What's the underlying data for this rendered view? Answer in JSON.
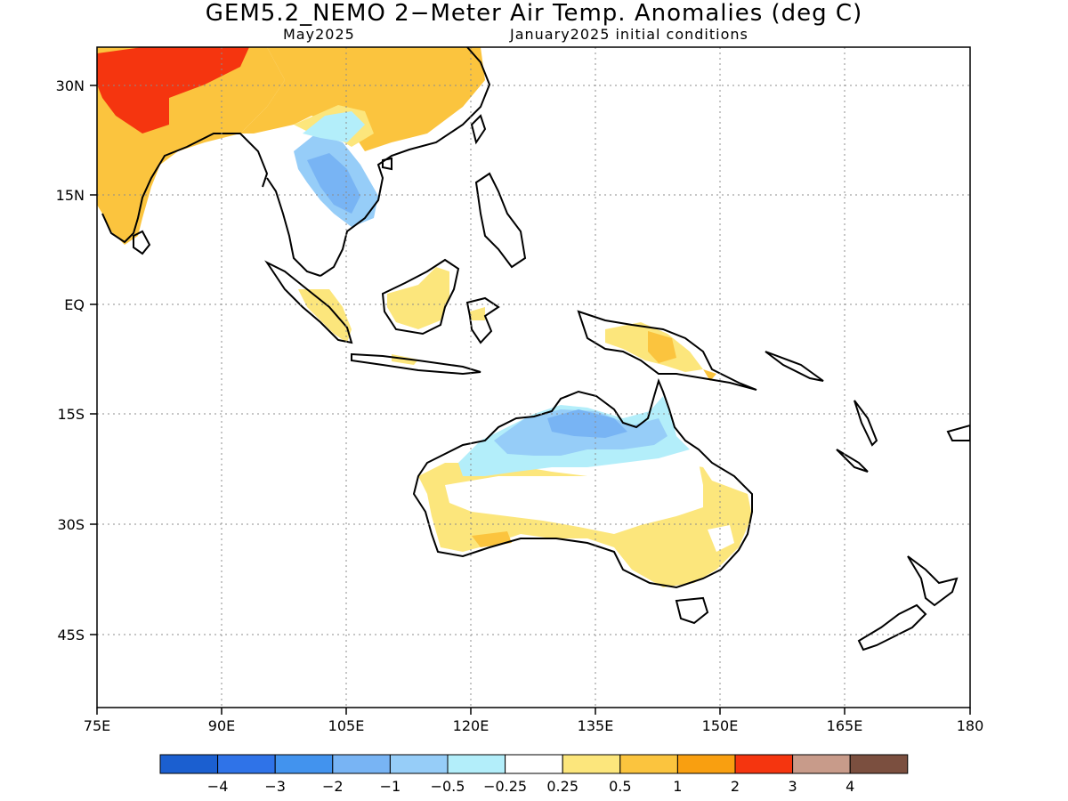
{
  "title": "GEM5.2_NEMO 2−Meter Air Temp. Anomalies (deg C)",
  "subtitle_left": "May2025",
  "subtitle_right": "January2025 initial conditions",
  "map": {
    "lon_range": [
      75,
      180
    ],
    "lat_range": [
      -52,
      35
    ],
    "gridlines": "dotted",
    "x_ticks": [
      "75E",
      "90E",
      "105E",
      "120E",
      "135E",
      "150E",
      "165E",
      "180"
    ],
    "y_ticks": [
      "30N",
      "15N",
      "EQ",
      "15S",
      "30S",
      "45S"
    ],
    "regions": [
      {
        "name": "india",
        "category": "1"
      },
      {
        "name": "north-india-hot-core",
        "category": "2"
      },
      {
        "name": "china",
        "category": "0.5"
      },
      {
        "name": "indochina",
        "category": "-0.5"
      },
      {
        "name": "borneo",
        "category": "0.25"
      },
      {
        "name": "sumatra",
        "category": "0.25"
      },
      {
        "name": "new-guinea",
        "category": "0.25"
      },
      {
        "name": "north-australia",
        "category": "-0.25"
      },
      {
        "name": "south-australia",
        "category": "0.25"
      }
    ]
  },
  "colorbar": {
    "colors": [
      "#1b5fd0",
      "#2f73e8",
      "#4293ee",
      "#78b4f4",
      "#96cdf8",
      "#b3eefa",
      "#ffffff",
      "#fce67c",
      "#fbc43e",
      "#f99f10",
      "#f5350f",
      "#c89b8a",
      "#7b4f3f"
    ],
    "labels": [
      "−4",
      "−3",
      "−2",
      "−1",
      "−0.5",
      "−0.25",
      "0.25",
      "0.5",
      "1",
      "2",
      "3",
      "4"
    ]
  }
}
